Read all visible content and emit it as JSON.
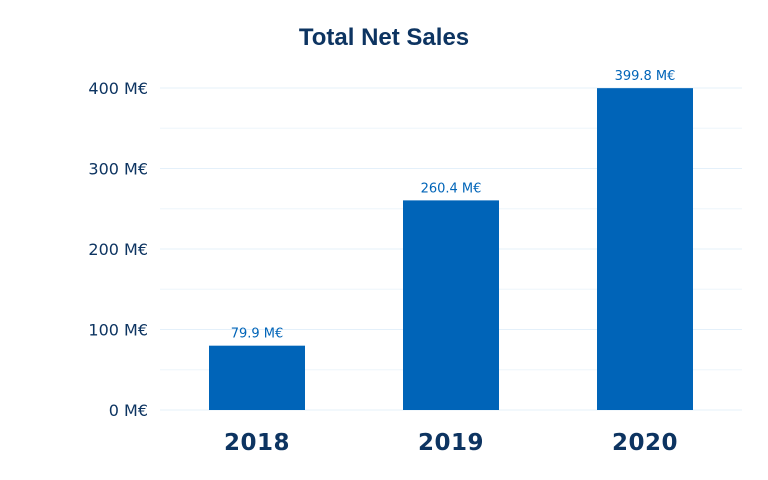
{
  "chart_data": {
    "type": "bar",
    "title": "Total Net Sales",
    "categories": [
      "2018",
      "2019",
      "2020"
    ],
    "values": [
      79.9,
      260.4,
      399.8
    ],
    "value_labels": [
      "79.9 M€",
      "260.4 M€",
      "399.8 M€"
    ],
    "y_ticks": [
      "0 M€",
      "100 M€",
      "200 M€",
      "300 M€",
      "400 M€"
    ],
    "ylim": [
      0,
      400
    ],
    "xlabel": "",
    "ylabel": "",
    "grid": true,
    "legend": "none",
    "colors": {
      "bar": "#0064b8",
      "title": "#0d3461",
      "axis_text": "#0d3461",
      "data_label": "#0064b8",
      "grid": "#e4f0fa"
    }
  }
}
